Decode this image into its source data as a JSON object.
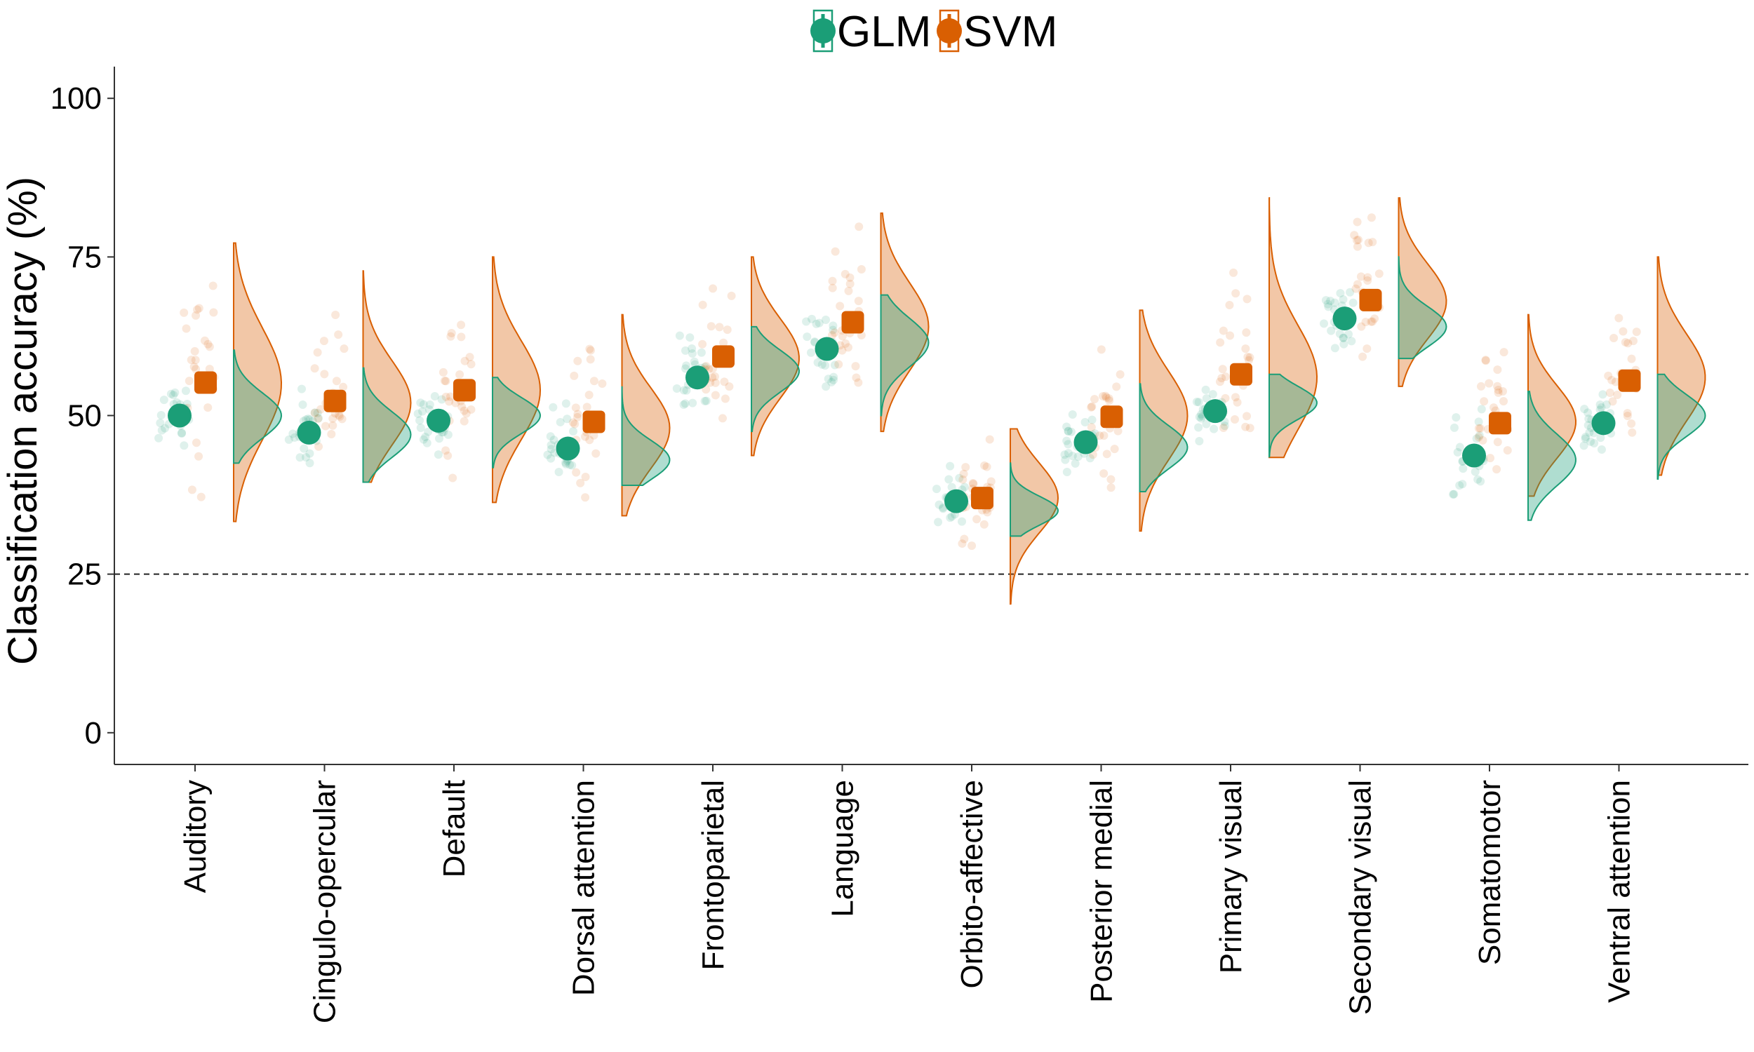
{
  "chart_data": {
    "type": "raincloud",
    "ylabel": "Classification accuracy (%)",
    "xlabel": "",
    "ylim": [
      -5,
      105
    ],
    "yticks": [
      0,
      25,
      50,
      75,
      100
    ],
    "reference_line": 25,
    "grid": false,
    "legend_placement": "top-center",
    "categories": [
      "Auditory",
      "Cingulo-opercular",
      "Default",
      "Dorsal attention",
      "Frontoparietal",
      "Language",
      "Orbito-affective",
      "Posterior medial",
      "Primary visual",
      "Secondary visual",
      "Somatomotor",
      "Ventral attention"
    ],
    "series": [
      {
        "name": "GLM",
        "color": "#1b9e77",
        "means": [
          50.0,
          47.3,
          49.2,
          44.8,
          56.0,
          60.5,
          36.5,
          45.8,
          50.7,
          65.3,
          43.7,
          48.8
        ],
        "dist_min": [
          42.5,
          39.5,
          41.8,
          39.0,
          47.5,
          50.0,
          31.0,
          38.0,
          43.5,
          59.0,
          33.5,
          40.0
        ],
        "dist_max": [
          60.3,
          57.5,
          56.0,
          54.5,
          64.0,
          69.0,
          42.5,
          55.0,
          56.5,
          75.0,
          53.8,
          56.5
        ],
        "dist_peak": [
          50.0,
          47.0,
          50.0,
          43.0,
          57.0,
          61.5,
          35.0,
          45.0,
          52.0,
          64.0,
          43.0,
          50.0
        ]
      },
      {
        "name": "SVM",
        "color": "#d95f02",
        "means": [
          55.2,
          52.3,
          54.0,
          49.0,
          59.3,
          64.7,
          37.0,
          49.8,
          56.5,
          68.2,
          48.8,
          55.5
        ],
        "dist_min": [
          33.3,
          39.5,
          36.3,
          34.2,
          43.7,
          47.5,
          20.3,
          31.8,
          43.4,
          54.6,
          37.3,
          40.6
        ],
        "dist_max": [
          77.2,
          72.8,
          75.0,
          65.9,
          75.0,
          81.9,
          47.9,
          66.6,
          84.3,
          84.3,
          65.9,
          75.0
        ],
        "dist_peak": [
          55.0,
          52.0,
          54.0,
          48.0,
          59.0,
          64.0,
          37.0,
          50.0,
          56.0,
          68.0,
          49.0,
          56.0
        ]
      }
    ]
  }
}
